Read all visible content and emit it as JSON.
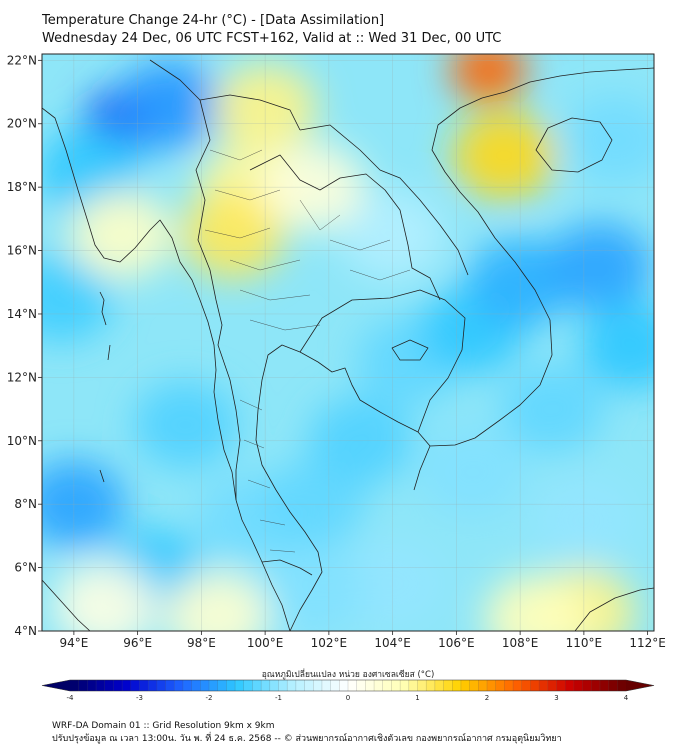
{
  "header": {
    "title": "Temperature Change 24-hr (°C) - [Data Assimilation]",
    "subtitle": "Wednesday 24 Dec, 06 UTC FCST+162, Valid at :: Wed 31 Dec, 00 UTC"
  },
  "map": {
    "lon_range": [
      93,
      112.2
    ],
    "lat_range": [
      4,
      22.2
    ],
    "lon_ticks": [
      {
        "value": 94,
        "label": "94°E"
      },
      {
        "value": 96,
        "label": "96°E"
      },
      {
        "value": 98,
        "label": "98°E"
      },
      {
        "value": 100,
        "label": "100°E"
      },
      {
        "value": 102,
        "label": "102°E"
      },
      {
        "value": 104,
        "label": "104°E"
      },
      {
        "value": 106,
        "label": "106°E"
      },
      {
        "value": 108,
        "label": "108°E"
      },
      {
        "value": 110,
        "label": "110°E"
      },
      {
        "value": 112,
        "label": "112°E"
      }
    ],
    "lat_ticks": [
      {
        "value": 22,
        "label": "22°N"
      },
      {
        "value": 20,
        "label": "20°N"
      },
      {
        "value": 18,
        "label": "18°N"
      },
      {
        "value": 16,
        "label": "16°N"
      },
      {
        "value": 14,
        "label": "14°N"
      },
      {
        "value": 12,
        "label": "12°N"
      },
      {
        "value": 10,
        "label": "10°N"
      },
      {
        "value": 8,
        "label": "8°N"
      },
      {
        "value": 6,
        "label": "6°N"
      },
      {
        "value": 4,
        "label": "4°N"
      }
    ],
    "gridlines": true,
    "field_blobs": [
      {
        "lon": 95.5,
        "lat": 20.1,
        "value": -2.6
      },
      {
        "lon": 97.0,
        "lat": 20.6,
        "value": -2.0
      },
      {
        "lon": 94.5,
        "lat": 18.5,
        "value": -1.6
      },
      {
        "lon": 93.6,
        "lat": 14.5,
        "value": -1.5
      },
      {
        "lon": 94.0,
        "lat": 8.0,
        "value": -1.9
      },
      {
        "lon": 96.5,
        "lat": 5.8,
        "value": -1.6
      },
      {
        "lon": 99.5,
        "lat": 7.5,
        "value": -1.2
      },
      {
        "lon": 101.5,
        "lat": 8.0,
        "value": -1.3
      },
      {
        "lon": 103.0,
        "lat": 10.0,
        "value": -1.4
      },
      {
        "lon": 104.5,
        "lat": 12.5,
        "value": -1.3
      },
      {
        "lon": 106.5,
        "lat": 13.5,
        "value": -1.6
      },
      {
        "lon": 108.0,
        "lat": 15.0,
        "value": -1.8
      },
      {
        "lon": 110.5,
        "lat": 15.5,
        "value": -1.9
      },
      {
        "lon": 111.5,
        "lat": 13.0,
        "value": -1.6
      },
      {
        "lon": 109.0,
        "lat": 11.0,
        "value": -1.3
      },
      {
        "lon": 106.5,
        "lat": 9.0,
        "value": -1.1
      },
      {
        "lon": 110.0,
        "lat": 7.5,
        "value": -1.0
      },
      {
        "lon": 104.0,
        "lat": 5.5,
        "value": -1.0
      },
      {
        "lon": 101.5,
        "lat": 5.3,
        "value": -1.1
      },
      {
        "lon": 97.5,
        "lat": 10.5,
        "value": -1.4
      },
      {
        "lon": 111.0,
        "lat": 19.5,
        "value": -1.2
      },
      {
        "lon": 104.0,
        "lat": 16.5,
        "value": -0.8
      },
      {
        "lon": 107.0,
        "lat": 21.7,
        "value": 2.4
      },
      {
        "lon": 107.5,
        "lat": 19.0,
        "value": 1.5
      },
      {
        "lon": 100.0,
        "lat": 20.5,
        "value": 1.0
      },
      {
        "lon": 99.5,
        "lat": 18.0,
        "value": 0.9
      },
      {
        "lon": 99.0,
        "lat": 16.5,
        "value": 1.2
      },
      {
        "lon": 101.5,
        "lat": 18.0,
        "value": 0.4
      },
      {
        "lon": 95.5,
        "lat": 16.5,
        "value": 0.6
      },
      {
        "lon": 110.0,
        "lat": 4.6,
        "value": 1.0
      },
      {
        "lon": 108.5,
        "lat": 4.4,
        "value": 0.7
      },
      {
        "lon": 98.5,
        "lat": 4.5,
        "value": 0.5
      },
      {
        "lon": 95.0,
        "lat": 4.8,
        "value": 0.3
      }
    ]
  },
  "colorbar": {
    "title": "อุณหภูมิเปลี่ยนแปลง หน่วย องศาเซลเซียส (°C)",
    "min": -4,
    "max": 4,
    "ticks": [
      {
        "value": -4,
        "label": "-4"
      },
      {
        "value": -3,
        "label": "-3"
      },
      {
        "value": -2,
        "label": "-2"
      },
      {
        "value": -1,
        "label": "-1"
      },
      {
        "value": 0,
        "label": "0"
      },
      {
        "value": 1,
        "label": "1"
      },
      {
        "value": 2,
        "label": "2"
      },
      {
        "value": 3,
        "label": "3"
      },
      {
        "value": 4,
        "label": "4"
      }
    ],
    "colors": [
      "#000066",
      "#0000cc",
      "#1e64ff",
      "#2ec8ff",
      "#b4f0ff",
      "#ffffff",
      "#ffffb4",
      "#ffd200",
      "#ff6400",
      "#cc0000",
      "#660000"
    ]
  },
  "footer": {
    "line1": "WRF-DA Domain 01 :: Grid Resolution 9km x 9km",
    "line2": "ปรับปรุงข้อมูล ณ เวลา 13:00น. วัน พ. ที่ 24 ธ.ค. 2568 -- © ส่วนพยากรณ์อากาศเชิงตัวเลข กองพยากรณ์อากาศ กรมอุตุนิยมวิทยา"
  }
}
